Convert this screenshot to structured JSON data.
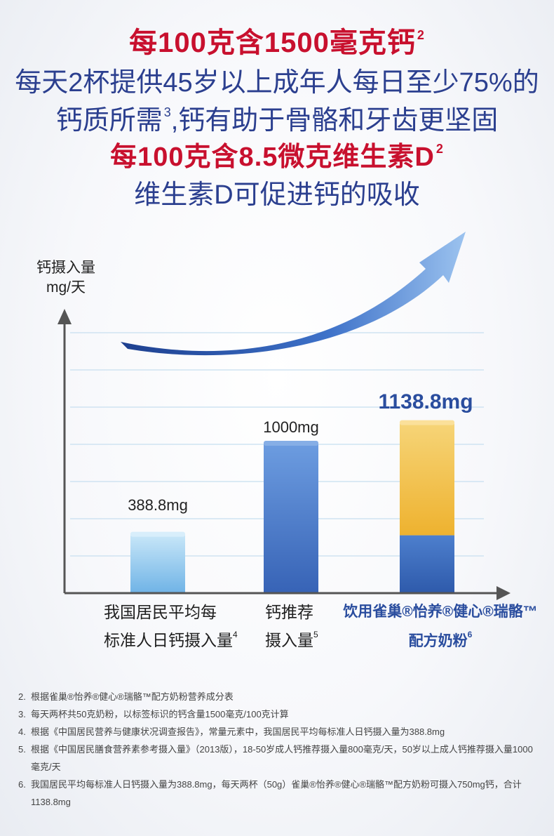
{
  "headlines": {
    "line1": "每100克含1500毫克钙",
    "line1_sup": "2",
    "line2": "每天2杯提供45岁以上成年人每日至少75%的",
    "line3a": "钙质所需",
    "line3_sup": "3",
    "line3b": ",钙有助于骨骼和牙齿更坚固",
    "line4": "每100克含8.5微克维生素D",
    "line4_sup": "2",
    "line5": "维生素D可促进钙的吸收"
  },
  "chart_data": {
    "type": "bar",
    "ylabel_line1": "钙摄入量",
    "ylabel_line2": "mg/天",
    "categories": [
      {
        "line1": "我国居民平均每",
        "line2": "标准人日钙摄入量",
        "sup": "4"
      },
      {
        "line1": "钙推荐",
        "line2": "摄入量",
        "sup": "5"
      },
      {
        "line1": "饮用雀巢®怡养®健心®瑞骼™",
        "line2": "配方奶粉",
        "sup": "6"
      }
    ],
    "values": [
      388.8,
      1000,
      1138.8
    ],
    "data_labels": [
      "388.8mg",
      "1000mg",
      "1138.8mg"
    ],
    "stacked_third": {
      "base": 388.8,
      "top": 750
    },
    "ylim": [
      0,
      1600
    ],
    "grid": true,
    "colors": {
      "bar1": "#8cc8ee",
      "bar2": "#4d7fcd",
      "bar3_base": "#3d6bbf",
      "bar3_top": "#f0ba3e",
      "arrow": "#3b6ec8",
      "highlight_label": "#2a4d9e"
    }
  },
  "footnotes": [
    {
      "num": "2.",
      "text": "根据雀巢®怡养®健心®瑞骼™配方奶粉营养成分表"
    },
    {
      "num": "3.",
      "text": "每天两杯共50克奶粉，以标签标识的钙含量1500毫克/100克计算"
    },
    {
      "num": "4.",
      "text": "根据《中国居民营养与健康状况调查报告》，常量元素中，我国居民平均每标准人日钙摄入量为388.8mg"
    },
    {
      "num": "5.",
      "text": "根据《中国居民膳食营养素参考摄入量》（2013版），18-50岁成人钙推荐摄入量800毫克/天，50岁以上成人钙推荐摄入量1000毫克/天"
    },
    {
      "num": "6.",
      "text": "我国居民平均每标准人日钙摄入量为388.8mg，每天两杯（50g）雀巢®怡养®健心®瑞骼™配方奶粉可摄入750mg钙，合计1138.8mg"
    }
  ]
}
